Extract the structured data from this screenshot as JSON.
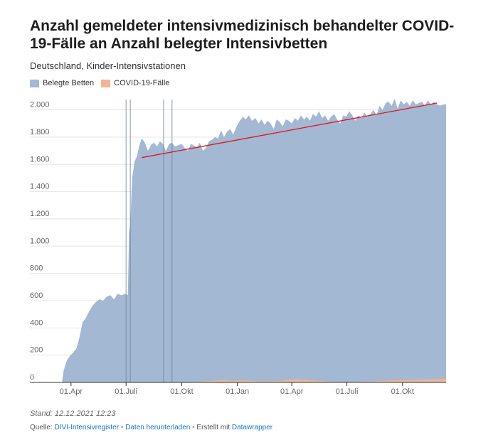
{
  "header": {
    "title": "Anzahl gemeldeter intensivmedizinisch behandelter COVID-19-Fälle an Anzahl belegter Intensivbetten",
    "subtitle": "Deutschland, Kinder-Intensivstationen"
  },
  "legend": [
    {
      "label": "Belegte Betten",
      "color": "#a3b8d2"
    },
    {
      "label": "COVID-19-Fälle",
      "color": "#f3b591"
    }
  ],
  "footer": {
    "stand": "Stand: 12.12.2021 12:23",
    "source_prefix": "Quelle:",
    "source_link": "DIVI-Intensivregister",
    "separator": "•",
    "download_link": "Daten herunterladen",
    "created_with": "Erstellt mit",
    "datawrapper_link": "Datawrapper"
  },
  "colors": {
    "area_beds": "#a3b8d2",
    "area_covid": "#f3b591",
    "trend_line": "#e3121b",
    "marker_lines": "#6e7f94",
    "grid": "#e5e5e5"
  },
  "chart_data": {
    "type": "area",
    "ylim": [
      0,
      2050
    ],
    "y_ticks": [
      0,
      200,
      400,
      600,
      800,
      1000,
      1200,
      1400,
      1600,
      1800,
      2000
    ],
    "y_tick_labels": [
      "0",
      "200",
      "400",
      "600",
      "800",
      "1.000",
      "1.200",
      "1.400",
      "1.600",
      "1.800",
      "2.000"
    ],
    "x_tick_labels": [
      {
        "date": "2020-04-01",
        "label": "01.Apr"
      },
      {
        "date": "2020-07-01",
        "label": "01.Juli"
      },
      {
        "date": "2020-10-01",
        "label": "01.Okt"
      },
      {
        "date": "2021-01-01",
        "label": "01.Jan"
      },
      {
        "date": "2021-04-01",
        "label": "01.Apr"
      },
      {
        "date": "2021-07-01",
        "label": "01.Juli"
      },
      {
        "date": "2021-10-01",
        "label": "01.Okt"
      }
    ],
    "x_range": [
      "2020-01-24",
      "2021-12-12"
    ],
    "series": [
      {
        "name": "Belegte Betten",
        "points": [
          [
            "2020-03-17",
            0
          ],
          [
            "2020-03-20",
            90
          ],
          [
            "2020-03-25",
            160
          ],
          [
            "2020-03-31",
            200
          ],
          [
            "2020-04-05",
            220
          ],
          [
            "2020-04-10",
            250
          ],
          [
            "2020-04-15",
            330
          ],
          [
            "2020-04-20",
            440
          ],
          [
            "2020-04-25",
            470
          ],
          [
            "2020-05-01",
            520
          ],
          [
            "2020-05-06",
            560
          ],
          [
            "2020-05-12",
            590
          ],
          [
            "2020-05-18",
            610
          ],
          [
            "2020-05-24",
            600
          ],
          [
            "2020-05-30",
            630
          ],
          [
            "2020-06-05",
            640
          ],
          [
            "2020-06-11",
            610
          ],
          [
            "2020-06-17",
            650
          ],
          [
            "2020-06-23",
            640
          ],
          [
            "2020-06-30",
            650
          ],
          [
            "2020-07-04",
            640
          ],
          [
            "2020-07-06",
            1100
          ],
          [
            "2020-07-08",
            1160
          ],
          [
            "2020-07-11",
            1500
          ],
          [
            "2020-07-15",
            1620
          ],
          [
            "2020-07-19",
            1660
          ],
          [
            "2020-07-23",
            1740
          ],
          [
            "2020-07-27",
            1790
          ],
          [
            "2020-08-01",
            1760
          ],
          [
            "2020-08-06",
            1700
          ],
          [
            "2020-08-11",
            1740
          ],
          [
            "2020-08-16",
            1760
          ],
          [
            "2020-08-21",
            1730
          ],
          [
            "2020-08-26",
            1770
          ],
          [
            "2020-08-31",
            1750
          ],
          [
            "2020-09-05",
            1700
          ],
          [
            "2020-09-10",
            1750
          ],
          [
            "2020-09-15",
            1760
          ],
          [
            "2020-09-20",
            1730
          ],
          [
            "2020-09-25",
            1740
          ],
          [
            "2020-10-01",
            1750
          ],
          [
            "2020-10-06",
            1720
          ],
          [
            "2020-10-11",
            1700
          ],
          [
            "2020-10-16",
            1750
          ],
          [
            "2020-10-21",
            1740
          ],
          [
            "2020-10-26",
            1720
          ],
          [
            "2020-10-31",
            1760
          ],
          [
            "2020-11-05",
            1700
          ],
          [
            "2020-11-10",
            1720
          ],
          [
            "2020-11-15",
            1770
          ],
          [
            "2020-11-20",
            1780
          ],
          [
            "2020-11-25",
            1800
          ],
          [
            "2020-11-30",
            1790
          ],
          [
            "2020-12-05",
            1850
          ],
          [
            "2020-12-10",
            1800
          ],
          [
            "2020-12-15",
            1840
          ],
          [
            "2020-12-20",
            1860
          ],
          [
            "2020-12-25",
            1820
          ],
          [
            "2020-12-31",
            1880
          ],
          [
            "2021-01-05",
            1920
          ],
          [
            "2021-01-10",
            1950
          ],
          [
            "2021-01-15",
            1930
          ],
          [
            "2021-01-20",
            1960
          ],
          [
            "2021-01-25",
            1920
          ],
          [
            "2021-01-31",
            1940
          ],
          [
            "2021-02-05",
            1900
          ],
          [
            "2021-02-10",
            1930
          ],
          [
            "2021-02-15",
            1890
          ],
          [
            "2021-02-20",
            1920
          ],
          [
            "2021-02-25",
            1900
          ],
          [
            "2021-03-02",
            1860
          ],
          [
            "2021-03-07",
            1930
          ],
          [
            "2021-03-12",
            1910
          ],
          [
            "2021-03-17",
            1880
          ],
          [
            "2021-03-22",
            1930
          ],
          [
            "2021-03-27",
            1920
          ],
          [
            "2021-04-01",
            1900
          ],
          [
            "2021-04-06",
            1940
          ],
          [
            "2021-04-11",
            1920
          ],
          [
            "2021-04-16",
            1960
          ],
          [
            "2021-04-21",
            1930
          ],
          [
            "2021-04-26",
            1950
          ],
          [
            "2021-05-01",
            1920
          ],
          [
            "2021-05-06",
            1970
          ],
          [
            "2021-05-11",
            1950
          ],
          [
            "2021-05-16",
            1990
          ],
          [
            "2021-05-21",
            1940
          ],
          [
            "2021-05-26",
            1960
          ],
          [
            "2021-05-31",
            1920
          ],
          [
            "2021-06-05",
            1950
          ],
          [
            "2021-06-10",
            1970
          ],
          [
            "2021-06-15",
            1930
          ],
          [
            "2021-06-20",
            1900
          ],
          [
            "2021-06-25",
            1960
          ],
          [
            "2021-06-30",
            1950
          ],
          [
            "2021-07-05",
            1990
          ],
          [
            "2021-07-10",
            1960
          ],
          [
            "2021-07-15",
            1920
          ],
          [
            "2021-07-20",
            1960
          ],
          [
            "2021-07-25",
            1940
          ],
          [
            "2021-07-30",
            1980
          ],
          [
            "2021-08-04",
            1950
          ],
          [
            "2021-08-09",
            1970
          ],
          [
            "2021-08-14",
            2000
          ],
          [
            "2021-08-19",
            1960
          ],
          [
            "2021-08-24",
            2030
          ],
          [
            "2021-08-29",
            2000
          ],
          [
            "2021-09-03",
            2050
          ],
          [
            "2021-09-08",
            2060
          ],
          [
            "2021-09-13",
            2030
          ],
          [
            "2021-09-18",
            2080
          ],
          [
            "2021-09-23",
            2010
          ],
          [
            "2021-09-28",
            2070
          ],
          [
            "2021-10-03",
            2040
          ],
          [
            "2021-10-08",
            2060
          ],
          [
            "2021-10-13",
            2030
          ],
          [
            "2021-10-18",
            2070
          ],
          [
            "2021-10-23",
            2040
          ],
          [
            "2021-10-28",
            2050
          ],
          [
            "2021-11-02",
            2060
          ],
          [
            "2021-11-07",
            2030
          ],
          [
            "2021-11-12",
            2070
          ],
          [
            "2021-11-17",
            2040
          ],
          [
            "2021-11-22",
            2060
          ],
          [
            "2021-11-27",
            2040
          ],
          [
            "2021-12-02",
            2030
          ],
          [
            "2021-12-07",
            2040
          ],
          [
            "2021-12-12",
            2040
          ]
        ]
      },
      {
        "name": "COVID-19-Fälle",
        "points": [
          [
            "2020-03-17",
            0
          ],
          [
            "2020-10-10",
            0
          ],
          [
            "2020-10-20",
            4
          ],
          [
            "2020-11-15",
            10
          ],
          [
            "2020-12-05",
            16
          ],
          [
            "2020-12-25",
            12
          ],
          [
            "2021-01-15",
            14
          ],
          [
            "2021-02-10",
            8
          ],
          [
            "2021-03-10",
            10
          ],
          [
            "2021-04-10",
            22
          ],
          [
            "2021-05-05",
            14
          ],
          [
            "2021-06-01",
            6
          ],
          [
            "2021-07-01",
            3
          ],
          [
            "2021-08-10",
            8
          ],
          [
            "2021-09-10",
            14
          ],
          [
            "2021-10-15",
            18
          ],
          [
            "2021-11-15",
            22
          ],
          [
            "2021-12-12",
            26
          ]
        ]
      }
    ],
    "trend_line": {
      "start": [
        "2020-07-27",
        1650
      ],
      "end": [
        "2021-11-27",
        2050
      ]
    },
    "markers": [
      "2020-07-01",
      "2020-07-08",
      "2020-09-01",
      "2020-09-15"
    ],
    "grid": true
  }
}
